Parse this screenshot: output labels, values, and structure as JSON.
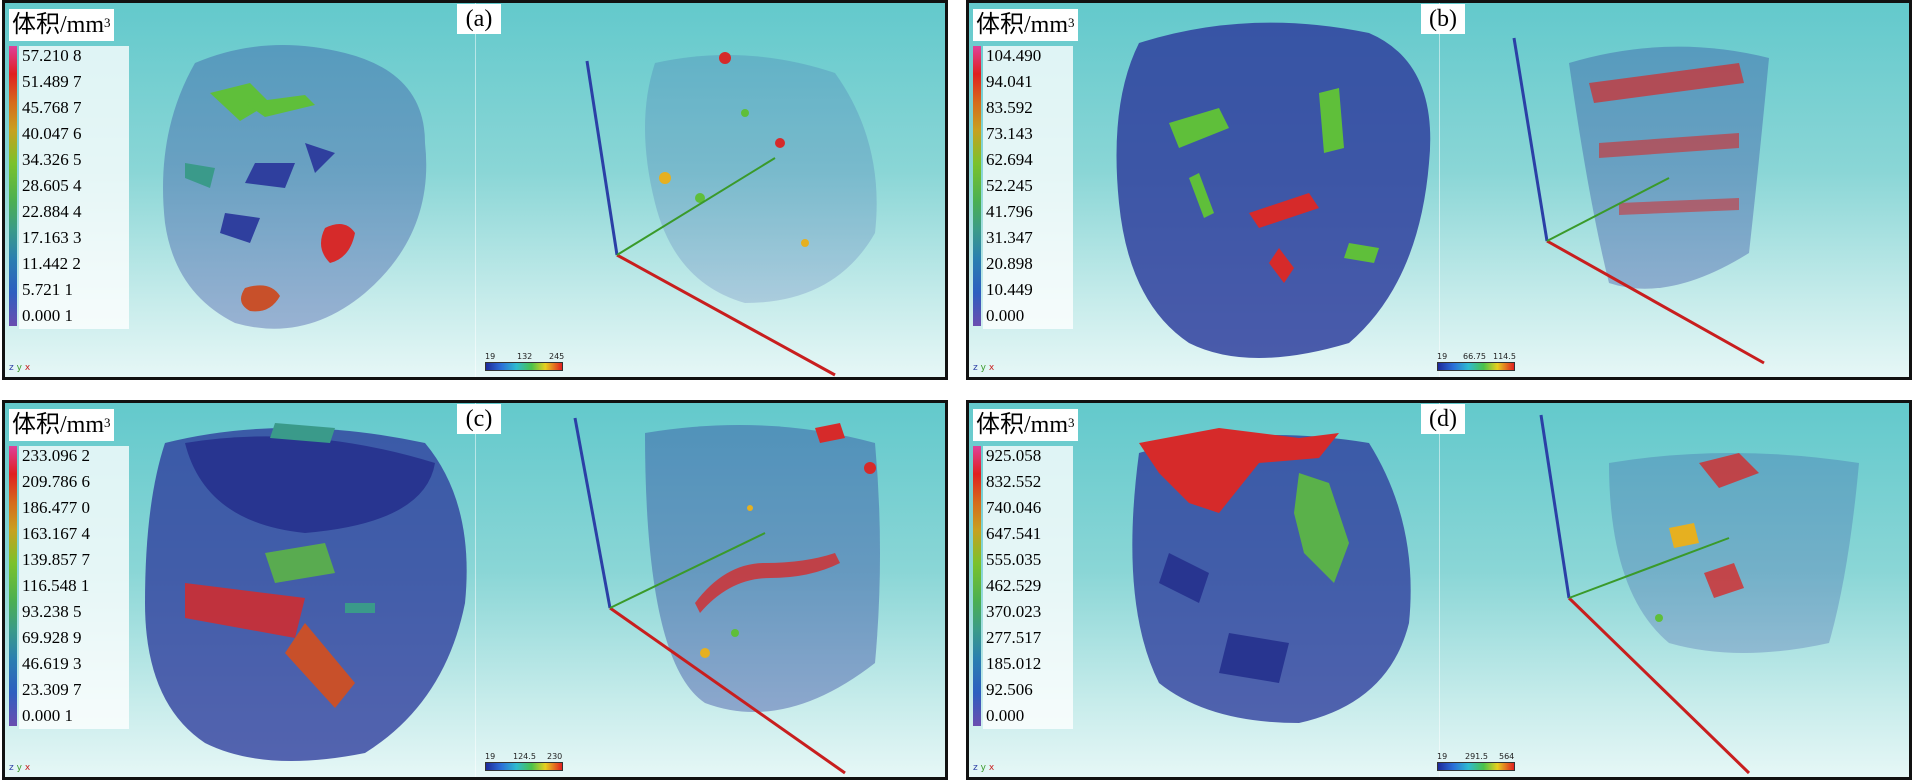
{
  "legend_title": "体积/mm",
  "legend_title_sup": "3",
  "panels": [
    {
      "id": "a",
      "label": "(a)",
      "legend_values": [
        "57.210 8",
        "51.489 7",
        "45.768 7",
        "40.047 6",
        "34.326 5",
        "28.605 4",
        "22.884 4",
        "17.163 3",
        "11.442 2",
        "5.721 1",
        "0.000 1"
      ],
      "colorbar_ticks": [
        "19",
        "132",
        "245"
      ]
    },
    {
      "id": "b",
      "label": "(b)",
      "legend_values": [
        "104.490",
        "94.041",
        "83.592",
        "73.143",
        "62.694",
        "52.245",
        "41.796",
        "31.347",
        "20.898",
        "10.449",
        "0.000"
      ],
      "colorbar_ticks": [
        "19",
        "66.75",
        "114.5"
      ]
    },
    {
      "id": "c",
      "label": "(c)",
      "legend_values": [
        "233.096 2",
        "209.786 6",
        "186.477 0",
        "163.167 4",
        "139.857 7",
        "116.548 1",
        "93.238 5",
        "69.928 9",
        "46.619 3",
        "23.309 7",
        "0.000 1"
      ],
      "colorbar_ticks": [
        "19",
        "124.5",
        "230"
      ]
    },
    {
      "id": "d",
      "label": "(d)",
      "legend_values": [
        "925.058",
        "832.552",
        "740.046",
        "647.541",
        "555.035",
        "462.529",
        "370.023",
        "277.517",
        "185.012",
        "92.506",
        "0.000"
      ],
      "colorbar_ticks": [
        "19",
        "291.5",
        "564"
      ]
    }
  ],
  "colors": {
    "background_top": "#63c9cc",
    "background_bottom": "#e6f7f6",
    "pore_blue": "#2f3f9e",
    "pore_green": "#5fbf3a",
    "pore_red": "#d62a2a",
    "axis_blue": "#2b3fa6",
    "axis_red": "#c81e1e",
    "axis_green": "#3a9a2a"
  },
  "axis_glyph_labels": [
    "z",
    "y",
    "x"
  ]
}
